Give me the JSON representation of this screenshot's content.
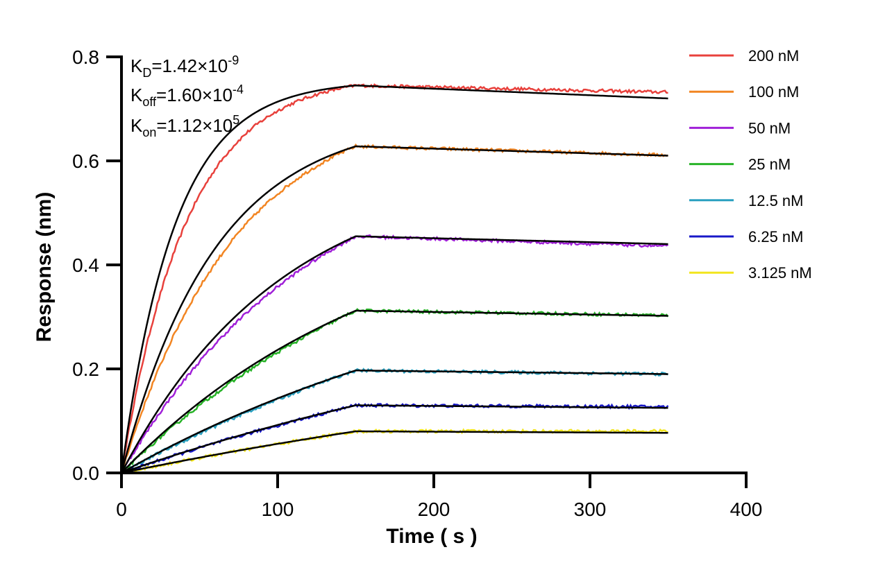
{
  "chart_data": {
    "type": "line",
    "xlabel": "Time ( s )",
    "ylabel": "Response (nm)",
    "xlim": [
      0,
      400
    ],
    "ylim": [
      0,
      0.8
    ],
    "xticks": [
      "0",
      "100",
      "200",
      "300",
      "400"
    ],
    "yticks": [
      "0.0",
      "0.2",
      "0.4",
      "0.6",
      "0.8"
    ],
    "grid": false,
    "legend_position": "top-right",
    "association_end": 150,
    "end_time": 350,
    "annotations": {
      "kd": {
        "base": "K",
        "sub": "D",
        "mid": "=1.42×10",
        "sup": "-9"
      },
      "koff": {
        "base": "K",
        "sub": "off",
        "mid": "=1.60×10",
        "sup": "-4"
      },
      "kon": {
        "base": "K",
        "sub": "on",
        "mid": "=1.12×10",
        "sup": "5"
      }
    },
    "series": [
      {
        "name": "200 nM",
        "color": "#e8413c",
        "peak": 0.745,
        "end": 0.72,
        "data_end": 0.732
      },
      {
        "name": "100 nM",
        "color": "#f28522",
        "peak": 0.628,
        "end": 0.61,
        "data_end": 0.611
      },
      {
        "name": "50 nM",
        "color": "#a020d8",
        "peak": 0.455,
        "end": 0.44,
        "data_end": 0.436
      },
      {
        "name": "25 nM",
        "color": "#27b327",
        "peak": 0.312,
        "end": 0.302,
        "data_end": 0.303
      },
      {
        "name": "12.5 nM",
        "color": "#2aa0c0",
        "peak": 0.197,
        "end": 0.19,
        "data_end": 0.19
      },
      {
        "name": "6.25 nM",
        "color": "#1818c8",
        "peak": 0.13,
        "end": 0.125,
        "data_end": 0.127
      },
      {
        "name": "3.125 nM",
        "color": "#f2e51e",
        "peak": 0.08,
        "end": 0.077,
        "data_end": 0.08
      }
    ],
    "fit_color": "#000000"
  }
}
